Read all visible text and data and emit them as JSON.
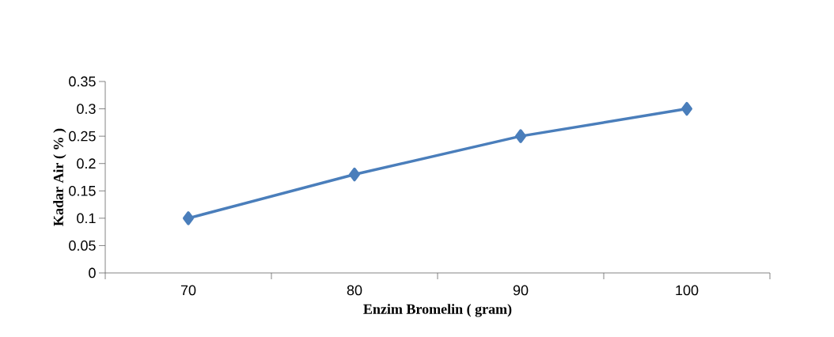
{
  "chart_data": {
    "type": "line",
    "xlabel": "Enzim Bromelin ( gram)",
    "ylabel": "Kadar Air (  %  )",
    "categories": [
      "70",
      "80",
      "90",
      "100"
    ],
    "series": [
      {
        "color": "#4a7ebb",
        "values": [
          0.1,
          0.18,
          0.25,
          0.3
        ]
      }
    ],
    "ylim": [
      0,
      0.35
    ],
    "yticks": [
      0,
      0.05,
      0.1,
      0.15,
      0.2,
      0.25,
      0.3,
      0.35
    ],
    "marker": "diamond",
    "line_style": "solid"
  }
}
